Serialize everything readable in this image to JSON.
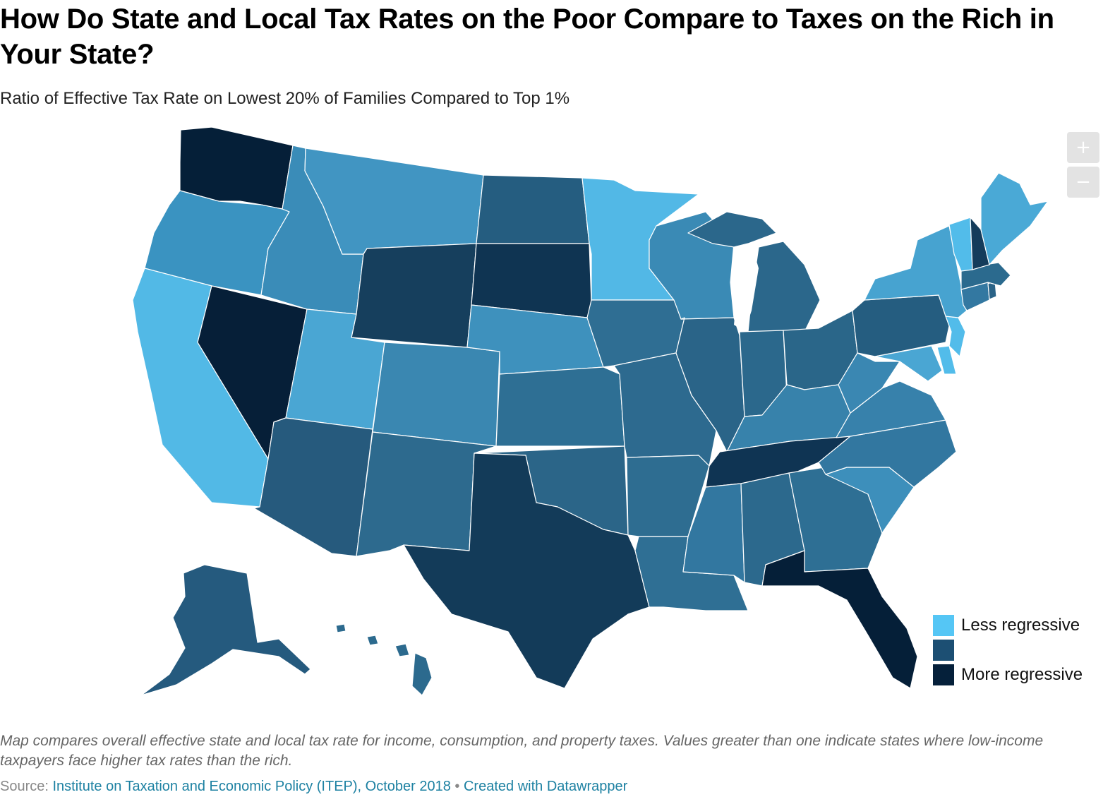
{
  "title": "How Do State and Local Tax Rates on the Poor Compare to Taxes on the Rich in Your State?",
  "subtitle": "Ratio of Effective Tax Rate on Lowest 20% of Families Compared to Top 1%",
  "zoom": {
    "in_label": "+",
    "out_label": "−"
  },
  "legend": [
    {
      "label": "Less regressive",
      "color": "#55c6f5"
    },
    {
      "label": "",
      "color": "#1c4f73"
    },
    {
      "label": "More regressive",
      "color": "#05203a"
    }
  ],
  "notes": "Map compares overall effective state and local tax rate for income, consumption, and property taxes. Values greater than one indicate states where low-income taxpayers face higher tax rates than the rich.",
  "source": {
    "prefix": "Source: ",
    "link_text": "Institute on Taxation and Economic Policy (ITEP), October 2018",
    "separator": " • ",
    "credit": "Created with Datawrapper"
  },
  "map_colors": {
    "WA": "#051f38",
    "OR": "#3a93c1",
    "CA": "#52b9e6",
    "NV": "#061f38",
    "ID": "#3a8cb8",
    "MT": "#4195c2",
    "WY": "#163f5d",
    "UT": "#4aa6d3",
    "AZ": "#265a7d",
    "CO": "#3a87b1",
    "NM": "#2d6a8e",
    "ND": "#255d80",
    "SD": "#0f3452",
    "NE": "#3e91bd",
    "KS": "#2e6f94",
    "OK": "#2b6588",
    "TX": "#133b59",
    "MN": "#52b8e6",
    "IA": "#2f6e93",
    "MO": "#2d6a8f",
    "AR": "#2e6d91",
    "LA": "#2f6f94",
    "WI": "#3a8ab5",
    "IL": "#2a6488",
    "MI": "#2b678b",
    "IN": "#2b688c",
    "OH": "#2a6689",
    "KY": "#3782ab",
    "TN": "#0f3453",
    "MS": "#3277a0",
    "AL": "#2c698d",
    "GA": "#2e6f94",
    "FL": "#051f38",
    "SC": "#3d8fbb",
    "NC": "#3277a0",
    "VA": "#3781ab",
    "WV": "#3a87b2",
    "PA": "#255d80",
    "NY": "#47a3d0",
    "VT": "#52bcea",
    "NH": "#143c5b",
    "ME": "#4aa9d6",
    "MA": "#2b6a8e",
    "CT": "#3378a1",
    "RI": "#2a6387",
    "NJ": "#52bcea",
    "DE": "#52bcea",
    "MD": "#4aa6d3",
    "AK": "#255a7e",
    "HI": "#2c6a8e"
  }
}
